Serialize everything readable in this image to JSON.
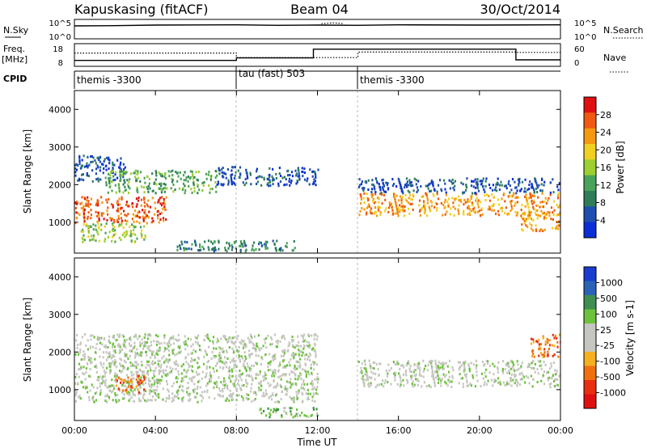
{
  "header": {
    "station": "Kapuskasing (fitACF)",
    "beam": "Beam 04",
    "date": "30/Oct/2014"
  },
  "noise_panel": {
    "left_label": "N.Sky",
    "left_ticks": [
      "10^5",
      "10^0"
    ],
    "right_ticks": [
      "10^5",
      "10^0"
    ],
    "right_label": "N.Search"
  },
  "freq_panel": {
    "left_label": "Freq.",
    "left_unit": "[MHz]",
    "left_ticks": [
      "18",
      "8"
    ],
    "right_ticks": [
      "60",
      "0"
    ],
    "right_label": "Nave"
  },
  "cpid": {
    "label": "CPID",
    "segments": [
      {
        "name": "themis -3300",
        "start_h": 0,
        "end_h": 8
      },
      {
        "name": "tau (fast) 503",
        "start_h": 8,
        "end_h": 14
      },
      {
        "name": "themis -3300",
        "start_h": 14,
        "end_h": 24
      }
    ]
  },
  "time_axis": {
    "label": "Time UT",
    "ticks": [
      "00:00",
      "04:00",
      "08:00",
      "12:00",
      "16:00",
      "20:00",
      "00:00"
    ],
    "tick_hours": [
      0,
      4,
      8,
      12,
      16,
      20,
      24
    ],
    "range_h": [
      0,
      24
    ]
  },
  "range_axis": {
    "label": "Slant Range [km]",
    "ticks": [
      1000,
      2000,
      3000,
      4000
    ],
    "range_km": [
      180,
      4500
    ]
  },
  "colors": {
    "power": [
      "#0a2ed6",
      "#1e4fb0",
      "#2f7d58",
      "#4aa35a",
      "#9ccf2f",
      "#f0d020",
      "#f59a10",
      "#f05a10",
      "#e01010"
    ],
    "velocity": [
      "#1a3cd0",
      "#2a62b8",
      "#3e8e52",
      "#6cc23c",
      "#c6c6c0",
      "#c6c6c0",
      "#f5b020",
      "#f07010",
      "#e83010",
      "#e01010"
    ]
  },
  "chart_data": [
    {
      "type": "line",
      "panel": "noise",
      "x_range_h": [
        0,
        24
      ],
      "series": [
        {
          "name": "N.Sky",
          "style": "solid",
          "x": [
            0,
            2,
            4,
            8,
            10,
            12,
            14,
            16,
            20,
            24
          ],
          "values": [
            4.2,
            4.3,
            4.5,
            4.6,
            4.4,
            4.5,
            4.4,
            4.6,
            4.5,
            4.6
          ]
        },
        {
          "name": "N.Search",
          "style": "dotted",
          "x": [
            12.2,
            12.8,
            13.3
          ],
          "values": [
            5.0,
            5.3,
            5.0
          ]
        }
      ]
    },
    {
      "type": "line",
      "panel": "frequency",
      "x_range_h": [
        0,
        24
      ],
      "series": [
        {
          "name": "Freq.",
          "style": "solid",
          "x": [
            0,
            8,
            8,
            11.8,
            11.8,
            21.8,
            21.8,
            24
          ],
          "values": [
            10.2,
            10.2,
            11.5,
            11.5,
            16,
            16,
            10.5,
            10.5
          ]
        },
        {
          "name": "Nave",
          "style": "dotted",
          "x": [
            0,
            8,
            8,
            14,
            14,
            21.8,
            21.8,
            24
          ],
          "values": [
            36,
            36,
            22,
            22,
            39,
            39,
            38,
            38
          ]
        }
      ]
    },
    {
      "type": "heatmap",
      "panel": "power",
      "xlabel": "Time UT",
      "ylabel": "Slant Range [km]",
      "colorbar_label": "Power [dB]",
      "colorbar_ticks": [
        4,
        8,
        12,
        16,
        20,
        24,
        28
      ],
      "xlim_h": [
        0,
        24
      ],
      "ylim_km": [
        180,
        4500
      ],
      "regions": [
        {
          "t": [
            0,
            2.5
          ],
          "r": [
            2100,
            2800
          ],
          "level": 1
        },
        {
          "t": [
            0,
            4.5
          ],
          "r": [
            1000,
            1700
          ],
          "level": 7
        },
        {
          "t": [
            0.3,
            3.5
          ],
          "r": [
            500,
            1000
          ],
          "level": 4
        },
        {
          "t": [
            1.5,
            7
          ],
          "r": [
            1800,
            2400
          ],
          "level": 3
        },
        {
          "t": [
            7,
            12
          ],
          "r": [
            2000,
            2500
          ],
          "level": 1
        },
        {
          "t": [
            5,
            11
          ],
          "r": [
            250,
            550
          ],
          "level": 2
        },
        {
          "t": [
            14,
            24
          ],
          "r": [
            1200,
            1800
          ],
          "level": 6
        },
        {
          "t": [
            14,
            24
          ],
          "r": [
            1800,
            2200
          ],
          "level": 1
        },
        {
          "t": [
            22,
            24
          ],
          "r": [
            800,
            1300
          ],
          "level": 6
        }
      ]
    },
    {
      "type": "heatmap",
      "panel": "velocity",
      "xlabel": "Time UT",
      "ylabel": "Slant Range [km]",
      "colorbar_label": "Velocity [m s-1]",
      "colorbar_ticks": [
        "1000",
        "500",
        "100",
        "25",
        "-25",
        "-100",
        "-500",
        "-1000"
      ],
      "xlim_h": [
        0,
        24
      ],
      "ylim_km": [
        180,
        4500
      ],
      "regions": [
        {
          "t": [
            0,
            12
          ],
          "r": [
            700,
            2500
          ],
          "level": 4
        },
        {
          "t": [
            2,
            3.5
          ],
          "r": [
            950,
            1400
          ],
          "level": 7
        },
        {
          "t": [
            14,
            24
          ],
          "r": [
            1100,
            1800
          ],
          "level": 4
        },
        {
          "t": [
            9,
            12
          ],
          "r": [
            300,
            550
          ],
          "level": 3
        },
        {
          "t": [
            22.5,
            24
          ],
          "r": [
            1900,
            2500
          ],
          "level": 7
        }
      ]
    }
  ]
}
